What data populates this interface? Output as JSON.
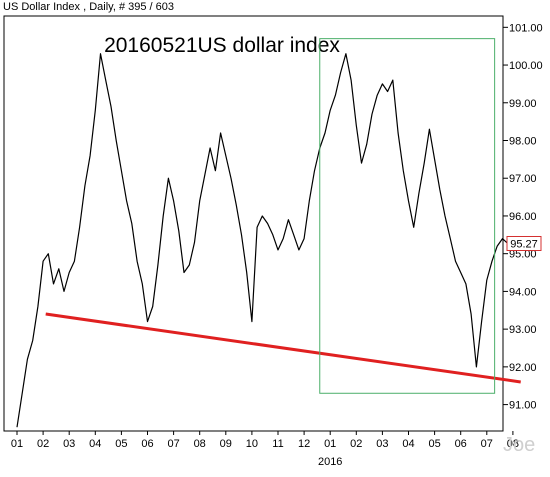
{
  "header": {
    "title": "US Dollar Index , Daily, # 395 / 603"
  },
  "chart_data": {
    "type": "line",
    "title": "20160521US dollar index",
    "x_axis": {
      "tick_labels": [
        "01",
        "02",
        "03",
        "04",
        "05",
        "06",
        "07",
        "08",
        "09",
        "10",
        "11",
        "12",
        "01",
        "02",
        "03",
        "04",
        "05",
        "06",
        "07",
        "08"
      ],
      "year_label": "2016"
    },
    "y_axis": {
      "ylim": [
        90.3,
        101.3
      ],
      "ticks": [
        "91.00",
        "92.00",
        "93.00",
        "94.00",
        "95.00",
        "96.00",
        "97.00",
        "98.00",
        "99.00",
        "100.00",
        "101.00"
      ]
    },
    "last_price_label": "95.27",
    "watermark": "Joe",
    "series": [
      {
        "color": "#000000",
        "points": [
          [
            0.0,
            90.4
          ],
          [
            0.2,
            91.3
          ],
          [
            0.4,
            92.2
          ],
          [
            0.6,
            92.7
          ],
          [
            0.8,
            93.6
          ],
          [
            1.0,
            94.8
          ],
          [
            1.2,
            95.0
          ],
          [
            1.4,
            94.2
          ],
          [
            1.6,
            94.6
          ],
          [
            1.8,
            94.0
          ],
          [
            2.0,
            94.5
          ],
          [
            2.2,
            94.8
          ],
          [
            2.4,
            95.7
          ],
          [
            2.6,
            96.8
          ],
          [
            2.8,
            97.6
          ],
          [
            3.0,
            98.8
          ],
          [
            3.2,
            100.3
          ],
          [
            3.4,
            99.6
          ],
          [
            3.6,
            98.9
          ],
          [
            3.8,
            98.0
          ],
          [
            4.0,
            97.2
          ],
          [
            4.2,
            96.4
          ],
          [
            4.4,
            95.8
          ],
          [
            4.6,
            94.8
          ],
          [
            4.8,
            94.2
          ],
          [
            5.0,
            93.2
          ],
          [
            5.2,
            93.6
          ],
          [
            5.4,
            94.7
          ],
          [
            5.6,
            96.0
          ],
          [
            5.8,
            97.0
          ],
          [
            6.0,
            96.4
          ],
          [
            6.2,
            95.6
          ],
          [
            6.4,
            94.5
          ],
          [
            6.6,
            94.7
          ],
          [
            6.8,
            95.3
          ],
          [
            7.0,
            96.4
          ],
          [
            7.2,
            97.1
          ],
          [
            7.4,
            97.8
          ],
          [
            7.6,
            97.2
          ],
          [
            7.8,
            98.2
          ],
          [
            8.0,
            97.6
          ],
          [
            8.2,
            97.0
          ],
          [
            8.4,
            96.3
          ],
          [
            8.6,
            95.5
          ],
          [
            8.8,
            94.5
          ],
          [
            9.0,
            93.2
          ],
          [
            9.2,
            95.7
          ],
          [
            9.4,
            96.0
          ],
          [
            9.6,
            95.8
          ],
          [
            9.8,
            95.5
          ],
          [
            10.0,
            95.1
          ],
          [
            10.2,
            95.4
          ],
          [
            10.4,
            95.9
          ],
          [
            10.6,
            95.5
          ],
          [
            10.8,
            95.1
          ],
          [
            11.0,
            95.4
          ],
          [
            11.2,
            96.4
          ],
          [
            11.4,
            97.2
          ],
          [
            11.6,
            97.8
          ],
          [
            11.8,
            98.2
          ],
          [
            12.0,
            98.8
          ],
          [
            12.2,
            99.2
          ],
          [
            12.4,
            99.8
          ],
          [
            12.6,
            100.3
          ],
          [
            12.8,
            99.6
          ],
          [
            13.0,
            98.4
          ],
          [
            13.2,
            97.4
          ],
          [
            13.4,
            97.9
          ],
          [
            13.6,
            98.7
          ],
          [
            13.8,
            99.2
          ],
          [
            14.0,
            99.5
          ],
          [
            14.2,
            99.3
          ],
          [
            14.4,
            99.6
          ],
          [
            14.6,
            98.2
          ],
          [
            14.8,
            97.2
          ],
          [
            15.0,
            96.4
          ],
          [
            15.2,
            95.7
          ],
          [
            15.4,
            96.6
          ],
          [
            15.6,
            97.4
          ],
          [
            15.8,
            98.3
          ],
          [
            16.0,
            97.5
          ],
          [
            16.2,
            96.7
          ],
          [
            16.4,
            96.0
          ],
          [
            16.6,
            95.4
          ],
          [
            16.8,
            94.8
          ],
          [
            17.0,
            94.5
          ],
          [
            17.2,
            94.2
          ],
          [
            17.4,
            93.4
          ],
          [
            17.6,
            92.0
          ],
          [
            17.8,
            93.2
          ],
          [
            18.0,
            94.3
          ],
          [
            18.2,
            94.8
          ],
          [
            18.4,
            95.2
          ],
          [
            18.6,
            95.4
          ],
          [
            18.8,
            95.27
          ]
        ]
      }
    ],
    "annotations": [
      {
        "type": "trendline",
        "color": "#e02020",
        "from": [
          1.1,
          93.4
        ],
        "to": [
          19.3,
          91.6
        ]
      },
      {
        "type": "rectangle",
        "color": "#4caf6a",
        "x_range": [
          11.6,
          18.3
        ],
        "y_range": [
          91.3,
          100.7
        ]
      }
    ]
  }
}
